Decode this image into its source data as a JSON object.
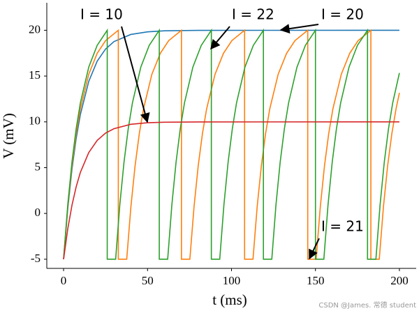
{
  "chart_data": {
    "type": "line",
    "xlabel": "t (ms)",
    "ylabel": "V (mV)",
    "xlim": [
      -10,
      210
    ],
    "ylim": [
      -6,
      23
    ],
    "xticks": [
      0,
      50,
      100,
      150,
      200
    ],
    "yticks": [
      -5,
      0,
      5,
      10,
      15,
      20
    ],
    "grid": false,
    "annotations": [
      "I = 10",
      "I = 22",
      "I = 20",
      "I = 21"
    ],
    "watermark": "CSDN @James. 常德 student",
    "series": [
      {
        "color": "#1f77b4",
        "x": [
          0,
          2.5,
          5,
          7.5,
          10,
          15,
          20,
          25,
          30,
          40,
          50,
          60,
          80,
          200
        ],
        "values": [
          -5,
          0.53,
          4.84,
          8.19,
          10.8,
          14.42,
          16.62,
          17.95,
          18.76,
          19.54,
          19.83,
          19.94,
          19.99,
          20
        ]
      },
      {
        "color": "#ff7f0e",
        "x": [
          0,
          2.5,
          5,
          7.5,
          10,
          15,
          20,
          25,
          32.6,
          32.6,
          37.6,
          40.1,
          42.6,
          45.1,
          47.6,
          52.6,
          57.6,
          62.6,
          70.2,
          70.2,
          75.2,
          77.7,
          80.2,
          82.7,
          85.2,
          90.2,
          95.2,
          100.2,
          107.8,
          107.8,
          112.8,
          115.3,
          117.8,
          120.3,
          122.8,
          127.8,
          132.8,
          137.8,
          145.4,
          145.4,
          150.4,
          152.9,
          155.4,
          157.9,
          160.4,
          165.4,
          170.4,
          175.4,
          183,
          183,
          188,
          190.5,
          193,
          195.5,
          198,
          200
        ],
        "values": [
          -5,
          0.75,
          5.23,
          8.72,
          11.43,
          15.2,
          17.48,
          18.87,
          20,
          -5,
          -5,
          0.75,
          5.23,
          8.72,
          11.43,
          15.2,
          17.48,
          18.87,
          20,
          -5,
          -5,
          0.75,
          5.23,
          8.72,
          11.43,
          15.2,
          17.48,
          18.87,
          20,
          -5,
          -5,
          0.75,
          5.23,
          8.72,
          11.43,
          15.2,
          17.48,
          18.87,
          20,
          -5,
          -5,
          0.75,
          5.23,
          8.72,
          11.43,
          15.2,
          17.48,
          18.87,
          20,
          -5,
          -5,
          0.75,
          5.23,
          8.72,
          11.43,
          13.17
        ]
      },
      {
        "color": "#2ca02c",
        "x": [
          0,
          2.5,
          5,
          7.5,
          10,
          15,
          20,
          26,
          26,
          31,
          33.5,
          36,
          38.5,
          41,
          46,
          51,
          57,
          57,
          62,
          64.5,
          67,
          69.5,
          72,
          77,
          82,
          88,
          88,
          93,
          95.5,
          98,
          100.5,
          103,
          108,
          113,
          119,
          119,
          124,
          126.5,
          129,
          131.5,
          134,
          139,
          144,
          150,
          150,
          155,
          157.5,
          160,
          162.5,
          165,
          170,
          175,
          181,
          181,
          186,
          188.5,
          191,
          193.5,
          196,
          200
        ],
        "values": [
          -5,
          0.97,
          5.62,
          9.25,
          12.07,
          15.98,
          18.35,
          20,
          -5,
          -5,
          0.97,
          5.62,
          9.25,
          12.07,
          15.98,
          18.35,
          20,
          -5,
          -5,
          0.97,
          5.62,
          9.25,
          12.07,
          15.98,
          18.35,
          20,
          -5,
          -5,
          0.97,
          5.62,
          9.25,
          12.07,
          15.98,
          18.35,
          20,
          -5,
          -5,
          0.97,
          5.62,
          9.25,
          12.07,
          15.98,
          18.35,
          20,
          -5,
          -5,
          0.97,
          5.62,
          9.25,
          12.07,
          15.98,
          18.35,
          20,
          -5,
          -5,
          0.97,
          5.62,
          9.25,
          12.07,
          15.34
        ]
      },
      {
        "color": "#d62728",
        "x": [
          0,
          2.5,
          5,
          7.5,
          10,
          15,
          20,
          25,
          30,
          40,
          50,
          60,
          80,
          200
        ],
        "values": [
          -5,
          -1.68,
          0.9,
          2.91,
          4.48,
          6.65,
          7.97,
          8.77,
          9.25,
          9.73,
          9.9,
          9.96,
          9.99,
          10
        ]
      }
    ]
  }
}
